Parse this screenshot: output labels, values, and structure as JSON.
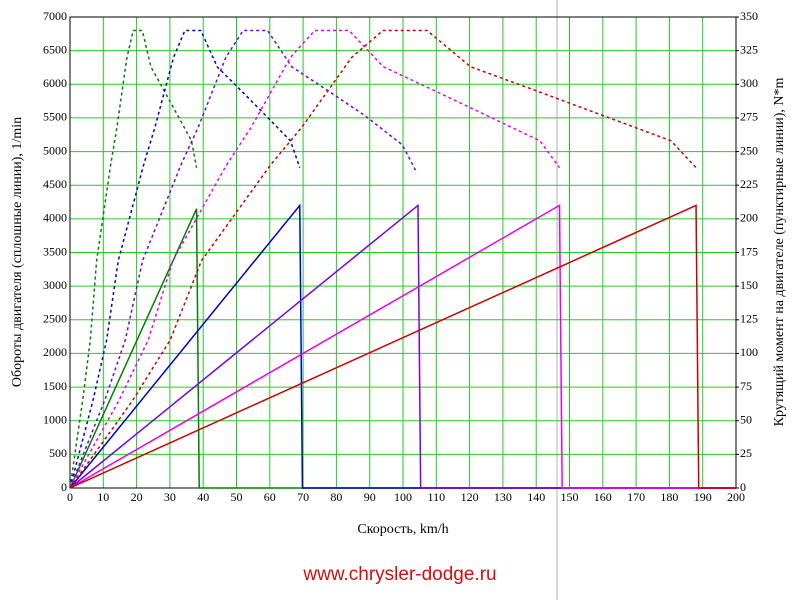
{
  "chart_data": {
    "type": "line",
    "xlabel": "Скорость, km/h",
    "ylabel": "Обороты двигателя (сплошные линии), 1/min",
    "y2label": "Крутящий момент на двигателе (пунктирные линии), N*m",
    "footer": "www.chrysler-dodge.ru",
    "xlim": [
      0,
      200
    ],
    "xticks": [
      0,
      10,
      20,
      30,
      40,
      50,
      60,
      70,
      80,
      90,
      100,
      110,
      120,
      130,
      140,
      150,
      160,
      170,
      180,
      190,
      200
    ],
    "ylim": [
      0,
      7000
    ],
    "yticks": [
      0,
      500,
      1000,
      1500,
      2000,
      2500,
      3000,
      3500,
      4000,
      4500,
      5000,
      5500,
      6000,
      6500,
      7000
    ],
    "y2lim": [
      0,
      350
    ],
    "y2ticks": [
      0,
      25,
      50,
      75,
      100,
      125,
      150,
      175,
      200,
      225,
      250,
      275,
      300,
      325,
      350
    ],
    "grid": true,
    "grid_color": "#22cc22",
    "series": [
      {
        "color": "#008000",
        "style": "solid",
        "x": [
          0,
          38,
          38.8,
          200
        ],
        "values": [
          0,
          4150,
          0,
          0
        ]
      },
      {
        "color": "#0000cc",
        "style": "solid",
        "x": [
          0,
          69,
          69.8,
          200
        ],
        "values": [
          0,
          4200,
          0,
          0
        ]
      },
      {
        "color": "#7a00e6",
        "style": "solid",
        "x": [
          0,
          104.5,
          105.3,
          200
        ],
        "values": [
          0,
          4200,
          0,
          0
        ]
      },
      {
        "color": "#ee00ee",
        "style": "solid",
        "x": [
          0,
          147,
          147.8,
          200
        ],
        "values": [
          0,
          4200,
          0,
          0
        ]
      },
      {
        "color": "#cc0000",
        "style": "solid",
        "x": [
          0,
          188,
          188.8,
          200
        ],
        "values": [
          0,
          4200,
          0,
          0
        ]
      },
      {
        "color": "#008000",
        "style": "dashed",
        "axis": "y2",
        "x": [
          0,
          3.8,
          6.1,
          8,
          12.2,
          14.1,
          17.1,
          19,
          21.7,
          24.3,
          28.1,
          32.3,
          36.5,
          38
        ],
        "values": [
          0,
          65,
          110,
          169,
          240,
          268,
          320,
          340,
          340,
          313,
          296,
          277,
          258,
          238
        ]
      },
      {
        "color": "#0000cc",
        "style": "dashed",
        "axis": "y2",
        "x": [
          0,
          6.9,
          11,
          14.5,
          22.1,
          25.5,
          31.1,
          34.5,
          39.3,
          44.2,
          51.1,
          58.7,
          66.2,
          69
        ],
        "values": [
          0,
          65,
          110,
          169,
          240,
          268,
          320,
          340,
          340,
          313,
          296,
          277,
          258,
          238
        ]
      },
      {
        "color": "#7a00e6",
        "style": "dashed",
        "axis": "y2",
        "x": [
          0,
          10.4,
          16.6,
          21.8,
          33.3,
          38.5,
          46.8,
          52,
          59.3,
          66.6,
          77,
          88.4,
          99.8,
          104
        ],
        "values": [
          0,
          65,
          110,
          169,
          240,
          268,
          320,
          340,
          340,
          313,
          296,
          277,
          255,
          235
        ]
      },
      {
        "color": "#ee00ee",
        "style": "dashed",
        "axis": "y2",
        "x": [
          0,
          14.7,
          23.5,
          30.9,
          47,
          54.4,
          66.2,
          73.5,
          83.8,
          94.1,
          108.8,
          125,
          141.1,
          147
        ],
        "values": [
          0,
          65,
          110,
          169,
          240,
          268,
          320,
          340,
          340,
          313,
          296,
          277,
          258,
          238
        ]
      },
      {
        "color": "#cc0000",
        "style": "dashed",
        "axis": "y2",
        "x": [
          0,
          18.8,
          30.1,
          39.5,
          60.2,
          69.6,
          84.6,
          94,
          107.2,
          120.3,
          139.1,
          159.8,
          180.5,
          188
        ],
        "values": [
          0,
          65,
          110,
          169,
          240,
          268,
          320,
          340,
          340,
          313,
          296,
          277,
          258,
          238
        ]
      }
    ]
  }
}
